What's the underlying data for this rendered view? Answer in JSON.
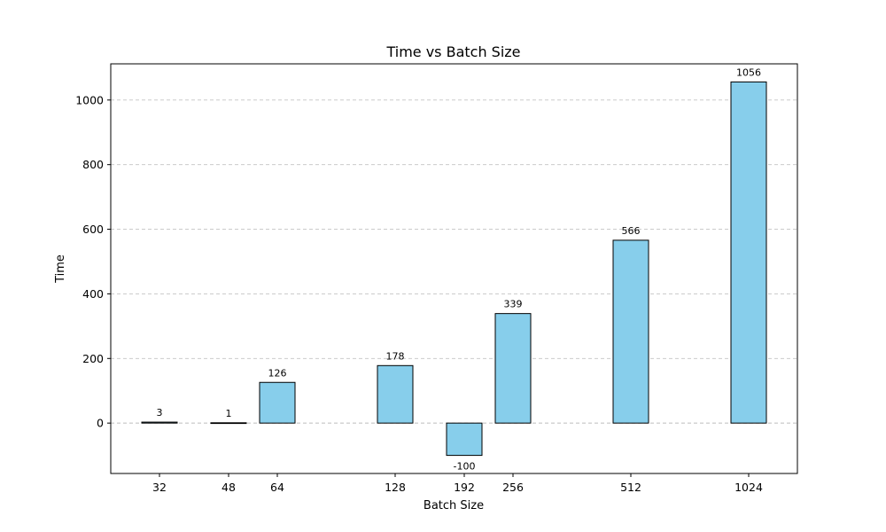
{
  "chart_data": {
    "type": "bar",
    "title": "Time vs Batch Size",
    "xlabel": "Batch Size",
    "ylabel": "Time",
    "categories": [
      "32",
      "48",
      "64",
      "128",
      "192",
      "256",
      "512",
      "1024"
    ],
    "values": [
      3,
      1,
      126,
      178,
      -100,
      339,
      566,
      1056
    ],
    "ylim": [
      -156,
      1112
    ],
    "yticks": [
      0,
      200,
      400,
      600,
      800,
      1000
    ],
    "grid": "horizontal dashed",
    "bar_color": "#87CEEB",
    "bar_edge_color": "#000000"
  }
}
